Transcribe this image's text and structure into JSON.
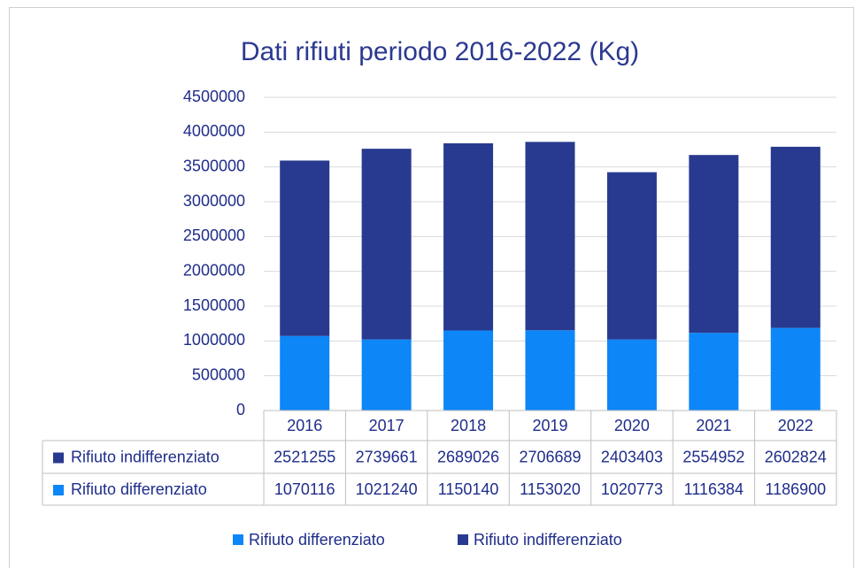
{
  "chart_data": {
    "type": "bar",
    "stacked": true,
    "title": "Dati rifiuti periodo 2016-2022 (Kg)",
    "categories": [
      "2016",
      "2017",
      "2018",
      "2019",
      "2020",
      "2021",
      "2022"
    ],
    "series": [
      {
        "name": "Rifiuto differenziato",
        "color": "#0d86f7",
        "values": [
          1070116,
          1021240,
          1150140,
          1153020,
          1020773,
          1116384,
          1186900
        ]
      },
      {
        "name": "Rifiuto indifferenziato",
        "color": "#283a8f",
        "values": [
          2521255,
          2739661,
          2689026,
          2706689,
          2403403,
          2554952,
          2602824
        ]
      }
    ],
    "ylim": [
      0,
      4500000
    ],
    "yticks": [
      0,
      500000,
      1000000,
      1500000,
      2000000,
      2500000,
      3000000,
      3500000,
      4000000,
      4500000
    ],
    "grid": true,
    "legend": "bottom",
    "data_table": true
  }
}
